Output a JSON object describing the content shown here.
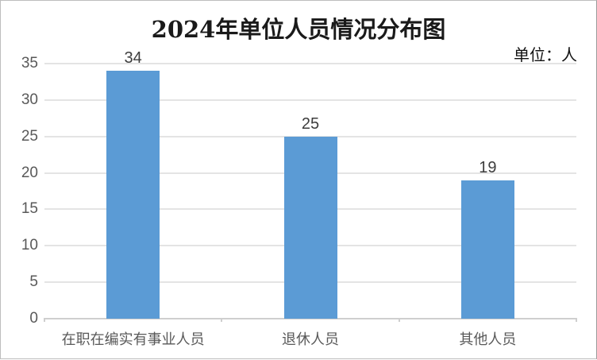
{
  "chart_data": {
    "type": "bar",
    "title": "2024年单位人员情况分布图",
    "unit_label": "单位：人",
    "categories": [
      "在职在编实有事业人员",
      "退休人员",
      "其他人员"
    ],
    "values": [
      34,
      25,
      19
    ],
    "yticks": [
      0,
      5,
      10,
      15,
      20,
      25,
      30,
      35
    ],
    "ylim": [
      0,
      35
    ],
    "xlabel": "",
    "ylabel": "",
    "grid": true,
    "legend": "none",
    "bar_color": "#5B9BD5",
    "gridline_color": "#E4E4E4",
    "axis_color": "#CFCFCF",
    "label_color": "#595959",
    "value_label_color": "#3D3D3D",
    "title_color": "#1A1A1A"
  }
}
